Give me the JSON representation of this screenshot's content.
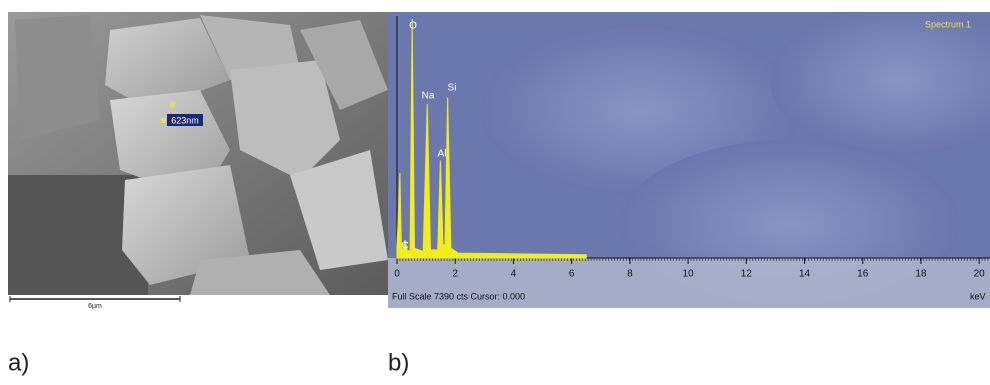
{
  "panels": {
    "a": {
      "label": "a)",
      "scale_bar": "6µm",
      "measurement": "623nm"
    },
    "b": {
      "label": "b)"
    }
  },
  "chart_data": {
    "type": "area",
    "title": "Spectrum 1",
    "x_label": "keV",
    "footer": "Full Scale 7390 cts Cursor: 0.000",
    "color": "#f2ee1a",
    "x": [
      0,
      0.1,
      0.15,
      0.2,
      0.28,
      0.35,
      0.45,
      0.52,
      0.6,
      0.9,
      1.04,
      1.15,
      1.4,
      1.49,
      1.58,
      1.65,
      1.74,
      1.85,
      2.1,
      6.5
    ],
    "values": [
      300,
      2600,
      300,
      250,
      550,
      250,
      200,
      7300,
      300,
      200,
      4710,
      250,
      250,
      2980,
      400,
      400,
      4900,
      300,
      150,
      100
    ],
    "annotations": [
      "O",
      "Na",
      "Al",
      "Si",
      "C"
    ],
    "xlim": [
      0,
      20.2
    ],
    "ylim": [
      0,
      7390
    ],
    "xticks": [
      0,
      2,
      4,
      6,
      8,
      10,
      12,
      14,
      16,
      18,
      20
    ]
  }
}
